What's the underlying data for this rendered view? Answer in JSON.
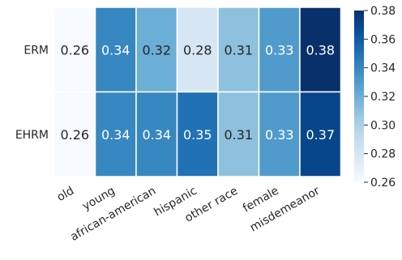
{
  "chart_data": {
    "type": "heatmap",
    "title": "",
    "xlabel": "",
    "ylabel": "",
    "rows": [
      "ERM",
      "EHRM"
    ],
    "columns": [
      "old",
      "young",
      "african-american",
      "hispanic",
      "other race",
      "female",
      "misdemeanor"
    ],
    "values": [
      [
        0.26,
        0.34,
        0.32,
        0.28,
        0.31,
        0.33,
        0.38
      ],
      [
        0.26,
        0.34,
        0.34,
        0.35,
        0.31,
        0.33,
        0.37
      ]
    ],
    "annotations": [
      [
        "0.26",
        "0.34",
        "0.32",
        "0.28",
        "0.31",
        "0.33",
        "0.38"
      ],
      [
        "0.26",
        "0.34",
        "0.34",
        "0.35",
        "0.31",
        "0.33",
        "0.37"
      ]
    ],
    "colorbar": {
      "colormap": "Blues",
      "vmin": 0.26,
      "vmax": 0.38,
      "ticks": [
        "0.26",
        "0.28",
        "0.30",
        "0.32",
        "0.34",
        "0.36",
        "0.38"
      ],
      "position": "right"
    },
    "colors": {
      "low": "#f7fbff",
      "high": "#08306b",
      "cell_border": "#ffffff",
      "text_dark": "#262626",
      "text_light": "#ffffff"
    }
  }
}
